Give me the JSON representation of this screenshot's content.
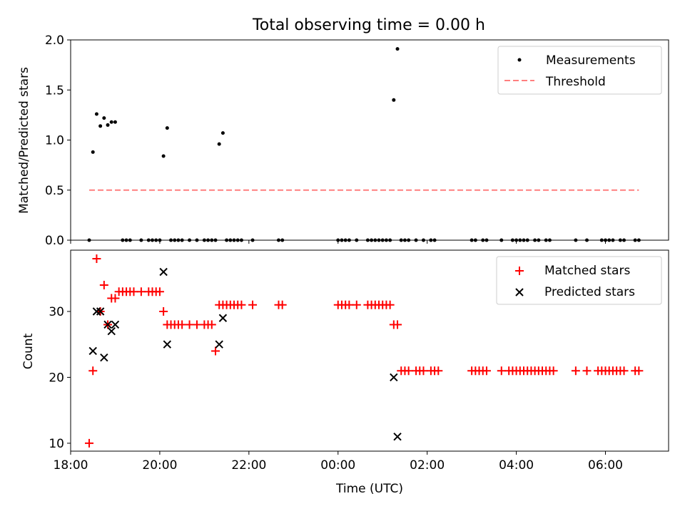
{
  "chart_data": [
    {
      "type": "scatter",
      "title": "Total observing time = 0.00 h",
      "ylabel": "Matched/Predicted stars",
      "xlabel": "",
      "xlim": [
        "18:00",
        "07:25"
      ],
      "ylim": [
        0,
        2.0
      ],
      "yticks": [
        "0.0",
        "0.5",
        "1.0",
        "1.5",
        "2.0"
      ],
      "legend_position": "top-right",
      "legend": [
        "Measurements",
        "Threshold"
      ],
      "colors": {
        "measurements": "#000000",
        "threshold": "#ff7f7f"
      },
      "series": [
        {
          "name": "Measurements",
          "x": [
            "18:30",
            "18:35",
            "18:40",
            "18:45",
            "18:50",
            "18:55",
            "19:00",
            "20:05",
            "20:10",
            "21:20",
            "21:25",
            "01:15",
            "01:20",
            "18:25",
            "19:10",
            "19:15",
            "19:20",
            "19:35",
            "19:45",
            "19:50",
            "19:55",
            "20:00",
            "20:15",
            "20:20",
            "20:25",
            "20:30",
            "20:40",
            "20:50",
            "21:00",
            "21:05",
            "21:10",
            "21:15",
            "21:30",
            "21:35",
            "21:40",
            "21:45",
            "21:50",
            "22:05",
            "22:40",
            "22:45",
            "00:00",
            "00:05",
            "00:10",
            "00:15",
            "00:25",
            "00:40",
            "00:45",
            "00:50",
            "00:55",
            "01:00",
            "01:05",
            "01:10",
            "01:25",
            "01:30",
            "01:35",
            "01:45",
            "01:55",
            "02:05",
            "02:10",
            "03:00",
            "03:05",
            "03:15",
            "03:20",
            "03:40",
            "03:55",
            "04:00",
            "04:05",
            "04:10",
            "04:15",
            "04:25",
            "04:30",
            "04:40",
            "04:45",
            "05:20",
            "05:35",
            "05:55",
            "06:00",
            "06:05",
            "06:10",
            "06:20",
            "06:25",
            "06:40",
            "06:45"
          ],
          "y": [
            0.88,
            1.26,
            1.14,
            1.22,
            1.15,
            1.18,
            1.18,
            0.84,
            1.12,
            0.96,
            1.07,
            1.4,
            1.91,
            0,
            0,
            0,
            0,
            0,
            0,
            0,
            0,
            0,
            0,
            0,
            0,
            0,
            0,
            0,
            0,
            0,
            0,
            0,
            0,
            0,
            0,
            0,
            0,
            0,
            0,
            0,
            0,
            0,
            0,
            0,
            0,
            0,
            0,
            0,
            0,
            0,
            0,
            0,
            0,
            0,
            0,
            0,
            0,
            0,
            0,
            0,
            0,
            0,
            0,
            0,
            0,
            0,
            0,
            0,
            0,
            0,
            0,
            0,
            0,
            0,
            0,
            0,
            0,
            0,
            0,
            0,
            0,
            0,
            0
          ]
        },
        {
          "name": "Threshold",
          "x": [
            "18:25",
            "06:45"
          ],
          "y": [
            0.5,
            0.5
          ]
        }
      ]
    },
    {
      "type": "scatter",
      "title": "",
      "ylabel": "Count",
      "xlabel": "Time (UTC)",
      "xticks": [
        "18:00",
        "20:00",
        "22:00",
        "00:00",
        "02:00",
        "04:00",
        "06:00"
      ],
      "xlim": [
        "18:00",
        "07:25"
      ],
      "ylim": [
        8.8,
        39.3
      ],
      "yticks": [
        "10",
        "20",
        "30"
      ],
      "legend_position": "top-right",
      "legend": [
        "Matched stars",
        "Predicted stars"
      ],
      "colors": {
        "matched": "#ff0000",
        "predicted": "#000000"
      },
      "series": [
        {
          "name": "Matched stars",
          "x": [
            "18:25",
            "18:30",
            "18:35",
            "18:40",
            "18:45",
            "18:50",
            "18:55",
            "19:00",
            "19:05",
            "19:10",
            "19:15",
            "19:20",
            "19:25",
            "19:35",
            "19:45",
            "19:50",
            "19:55",
            "20:00",
            "20:05",
            "20:10",
            "20:15",
            "20:20",
            "20:25",
            "20:30",
            "20:40",
            "20:50",
            "21:00",
            "21:05",
            "21:10",
            "21:15",
            "21:20",
            "21:25",
            "21:30",
            "21:35",
            "21:40",
            "21:45",
            "21:50",
            "22:05",
            "22:40",
            "22:45",
            "00:00",
            "00:05",
            "00:10",
            "00:15",
            "00:25",
            "00:40",
            "00:45",
            "00:50",
            "00:55",
            "01:00",
            "01:05",
            "01:10",
            "01:15",
            "01:20",
            "01:25",
            "01:30",
            "01:35",
            "01:45",
            "01:50",
            "01:55",
            "02:05",
            "02:10",
            "02:15",
            "03:00",
            "03:05",
            "03:10",
            "03:15",
            "03:20",
            "03:40",
            "03:50",
            "03:55",
            "04:00",
            "04:05",
            "04:10",
            "04:15",
            "04:20",
            "04:25",
            "04:30",
            "04:35",
            "04:40",
            "04:45",
            "04:50",
            "05:20",
            "05:35",
            "05:50",
            "05:55",
            "06:00",
            "06:05",
            "06:10",
            "06:15",
            "06:20",
            "06:25",
            "06:40",
            "06:45"
          ],
          "y": [
            10,
            21,
            38,
            30,
            34,
            28,
            32,
            32,
            33,
            33,
            33,
            33,
            33,
            33,
            33,
            33,
            33,
            33,
            30,
            28,
            28,
            28,
            28,
            28,
            28,
            28,
            28,
            28,
            28,
            24,
            31,
            31,
            31,
            31,
            31,
            31,
            31,
            31,
            31,
            31,
            31,
            31,
            31,
            31,
            31,
            31,
            31,
            31,
            31,
            31,
            31,
            31,
            28,
            28,
            21,
            21,
            21,
            21,
            21,
            21,
            21,
            21,
            21,
            21,
            21,
            21,
            21,
            21,
            21,
            21,
            21,
            21,
            21,
            21,
            21,
            21,
            21,
            21,
            21,
            21,
            21,
            21,
            21,
            21,
            21,
            21,
            21,
            21,
            21,
            21,
            21,
            21,
            21,
            21
          ]
        },
        {
          "name": "Predicted stars",
          "x": [
            "18:30",
            "18:35",
            "18:40",
            "18:45",
            "18:50",
            "18:55",
            "19:00",
            "20:05",
            "20:10",
            "21:20",
            "21:25",
            "01:15",
            "01:20"
          ],
          "y": [
            24,
            30,
            30,
            23,
            28,
            27,
            28,
            36,
            25,
            25,
            29,
            20,
            11
          ]
        }
      ]
    }
  ]
}
